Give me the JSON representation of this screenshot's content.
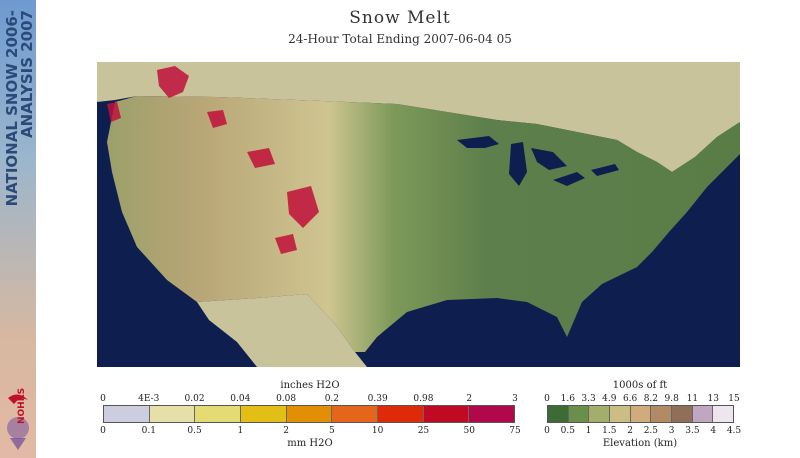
{
  "sidebar": {
    "title_line1": "NATIONAL SNOW",
    "title_line2": "ANALYSIS",
    "year_line1": "2006-",
    "year_line2": "2007",
    "logo_text": "NOHRSC"
  },
  "header": {
    "title": "Snow Melt",
    "subtitle": "24-Hour Total Ending 2007-06-04 05"
  },
  "map": {
    "region": "Contiguous United States",
    "colors": {
      "ocean": "#0e1e4f",
      "canada_mexico": "#c8c39a",
      "lowland": "#5d7f4b",
      "plains": "#c9c08a",
      "melt": "#c0103a"
    }
  },
  "snow_legend": {
    "top_unit": "inches H2O",
    "bottom_unit": "mm H2O",
    "top_labels": [
      "0",
      "4E-3",
      "0.02",
      "0.04",
      "0.08",
      "0.2",
      "0.39",
      "0.98",
      "2",
      "3"
    ],
    "bottom_labels": [
      "0",
      "0.1",
      "0.5",
      "1",
      "2",
      "5",
      "10",
      "25",
      "50",
      "75"
    ],
    "colors": [
      "#cdcde0",
      "#e6e0a8",
      "#e3dc74",
      "#e3bf15",
      "#e38f05",
      "#e4661a",
      "#df2a0a",
      "#c00a24",
      "#b1084a"
    ]
  },
  "elev_legend": {
    "top_unit": "1000s of ft",
    "bottom_unit": "Elevation (km)",
    "top_labels": [
      "0",
      "1.6",
      "3.3",
      "4.9",
      "6.6",
      "8.2",
      "9.8",
      "11",
      "13",
      "15"
    ],
    "bottom_labels": [
      "0",
      "0.5",
      "1",
      "1.5",
      "2",
      "2.5",
      "3",
      "3.5",
      "4",
      "4.5"
    ],
    "colors": [
      "#3e6b35",
      "#6a8f4a",
      "#a3ae6c",
      "#cbbd84",
      "#cfac79",
      "#b18b66",
      "#8f6f58",
      "#c0a6c0",
      "#ede6ef"
    ]
  }
}
